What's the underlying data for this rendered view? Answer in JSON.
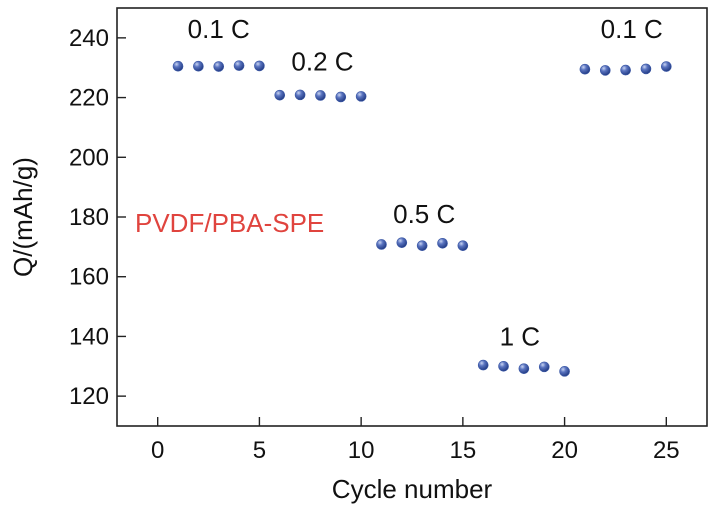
{
  "chart_data": {
    "type": "scatter",
    "title": "",
    "xlabel": "Cycle number",
    "ylabel": "Q/(mAh/g)",
    "xlim": [
      -2,
      27
    ],
    "ylim": [
      110,
      250
    ],
    "xticks": [
      0,
      5,
      10,
      15,
      20,
      25
    ],
    "yticks": [
      120,
      140,
      160,
      180,
      200,
      220,
      240
    ],
    "grid": false,
    "legend_text": "PVDF/PBA-SPE",
    "legend_color": "#e0443e",
    "marker_color": "#3b58a6",
    "series": [
      {
        "name": "PVDF/PBA-SPE",
        "x": [
          1,
          2,
          3,
          4,
          5,
          6,
          7,
          8,
          9,
          10,
          11,
          12,
          13,
          14,
          15,
          16,
          17,
          18,
          19,
          20,
          21,
          22,
          23,
          24,
          25
        ],
        "y": [
          230.5,
          230.5,
          230.4,
          230.7,
          230.6,
          220.8,
          220.9,
          220.7,
          220.2,
          220.4,
          170.8,
          171.4,
          170.4,
          171.2,
          170.4,
          130.4,
          130.0,
          129.2,
          129.8,
          128.3,
          229.5,
          229.1,
          229.2,
          229.6,
          230.4
        ]
      }
    ],
    "annotations": [
      {
        "text": "0.1 C",
        "x": 3,
        "y": 240
      },
      {
        "text": "0.2 C",
        "x": 8.1,
        "y": 229
      },
      {
        "text": "0.5 C",
        "x": 13.1,
        "y": 178
      },
      {
        "text": "1 C",
        "x": 17.8,
        "y": 137
      },
      {
        "text": "0.1 C",
        "x": 23.3,
        "y": 240
      }
    ]
  }
}
